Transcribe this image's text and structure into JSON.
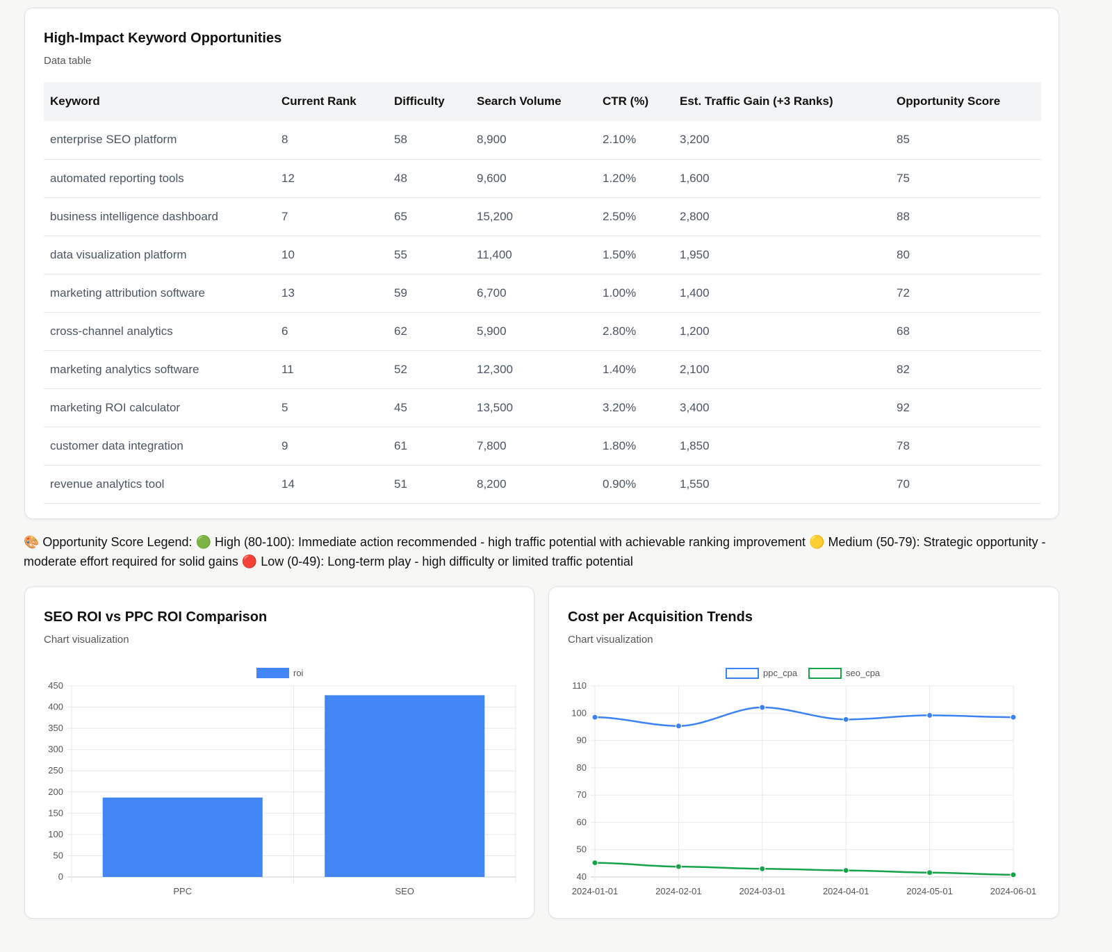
{
  "table_card": {
    "title": "High-Impact Keyword Opportunities",
    "subtitle": "Data table",
    "columns": [
      "Keyword",
      "Current Rank",
      "Difficulty",
      "Search Volume",
      "CTR (%)",
      "Est. Traffic Gain (+3 Ranks)",
      "Opportunity Score"
    ],
    "rows": [
      [
        "enterprise SEO platform",
        "8",
        "58",
        "8,900",
        "2.10%",
        "3,200",
        "85"
      ],
      [
        "automated reporting tools",
        "12",
        "48",
        "9,600",
        "1.20%",
        "1,600",
        "75"
      ],
      [
        "business intelligence dashboard",
        "7",
        "65",
        "15,200",
        "2.50%",
        "2,800",
        "88"
      ],
      [
        "data visualization platform",
        "10",
        "55",
        "11,400",
        "1.50%",
        "1,950",
        "80"
      ],
      [
        "marketing attribution software",
        "13",
        "59",
        "6,700",
        "1.00%",
        "1,400",
        "72"
      ],
      [
        "cross-channel analytics",
        "6",
        "62",
        "5,900",
        "2.80%",
        "1,200",
        "68"
      ],
      [
        "marketing analytics software",
        "11",
        "52",
        "12,300",
        "1.40%",
        "2,100",
        "82"
      ],
      [
        "marketing ROI calculator",
        "5",
        "45",
        "13,500",
        "3.20%",
        "3,400",
        "92"
      ],
      [
        "customer data integration",
        "9",
        "61",
        "7,800",
        "1.80%",
        "1,850",
        "78"
      ],
      [
        "revenue analytics tool",
        "14",
        "51",
        "8,200",
        "0.90%",
        "1,550",
        "70"
      ]
    ]
  },
  "legend_text": "🎨 Opportunity Score Legend: 🟢 High (80-100): Immediate action recommended - high traffic potential with achievable ranking improvement 🟡 Medium (50-79): Strategic opportunity - moderate effort required for solid gains 🔴 Low (0-49): Long-term play - high difficulty or limited traffic potential",
  "bar_card": {
    "title": "SEO ROI vs PPC ROI Comparison",
    "subtitle": "Chart visualization"
  },
  "line_card": {
    "title": "Cost per Acquisition Trends",
    "subtitle": "Chart visualization"
  },
  "chart_data": [
    {
      "type": "bar",
      "categories": [
        "PPC",
        "SEO"
      ],
      "series": [
        {
          "name": "roi",
          "values": [
            187,
            428
          ],
          "color": "#4285f4"
        }
      ],
      "ylim": [
        0,
        450
      ],
      "yticks": [
        0,
        50,
        100,
        150,
        200,
        250,
        300,
        350,
        400,
        450
      ],
      "grid": true,
      "legend": "top"
    },
    {
      "type": "line",
      "x": [
        "2024-01-01",
        "2024-02-01",
        "2024-03-01",
        "2024-04-01",
        "2024-05-01",
        "2024-06-01"
      ],
      "series": [
        {
          "name": "ppc_cpa",
          "values": [
            98.5,
            95.3,
            102.1,
            97.7,
            99.2,
            98.5
          ],
          "color": "#3b82f6"
        },
        {
          "name": "seo_cpa",
          "values": [
            45.2,
            43.8,
            43.0,
            42.4,
            41.6,
            40.8
          ],
          "color": "#16a34a"
        }
      ],
      "ylim": [
        40,
        110
      ],
      "yticks": [
        40,
        50,
        60,
        70,
        80,
        90,
        100,
        110
      ],
      "grid": true,
      "legend": "top"
    }
  ]
}
